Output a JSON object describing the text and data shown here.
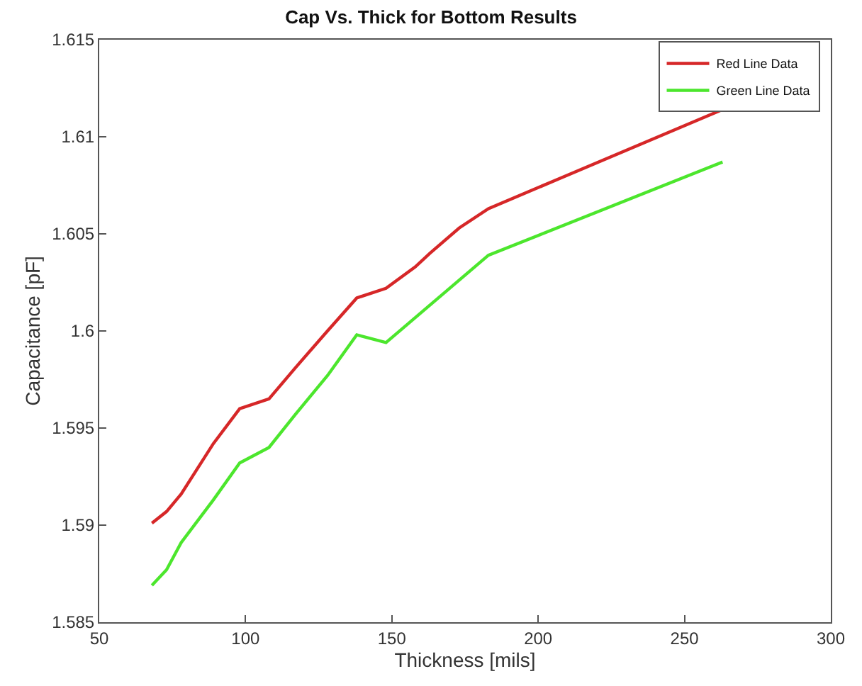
{
  "chart_data": {
    "type": "line",
    "title": "Cap Vs. Thick for Bottom Results",
    "xlabel": "Thickness [mils]",
    "ylabel": "Capacitance [pF]",
    "xlim": [
      50,
      300
    ],
    "xticks": [
      50,
      100,
      150,
      200,
      250,
      300
    ],
    "ylim": [
      1.585,
      1.615
    ],
    "yticks": [
      1.585,
      1.59,
      1.595,
      1.6,
      1.605,
      1.61,
      1.615
    ],
    "grid": false,
    "legend": "top right",
    "marker": "none",
    "line_style": "solid",
    "series": [
      {
        "name": "Red Line Data",
        "color": "#d62728",
        "x": [
          68,
          73,
          78,
          89,
          98,
          108,
          117,
          128,
          138,
          148,
          158,
          163,
          173,
          183,
          263
        ],
        "values": [
          1.5901,
          1.5907,
          1.5916,
          1.5942,
          1.596,
          1.5965,
          1.5981,
          1.6,
          1.6017,
          1.6022,
          1.6033,
          1.604,
          1.6053,
          1.6063,
          1.6114
        ]
      },
      {
        "name": "Green Line Data",
        "color": "#4ce62d",
        "x": [
          68,
          73,
          78,
          89,
          98,
          108,
          117,
          128,
          138,
          148,
          183,
          263
        ],
        "values": [
          1.5869,
          1.5877,
          1.5891,
          1.5913,
          1.5932,
          1.594,
          1.5957,
          1.5977,
          1.5998,
          1.5994,
          1.6039,
          1.6087
        ]
      }
    ]
  }
}
